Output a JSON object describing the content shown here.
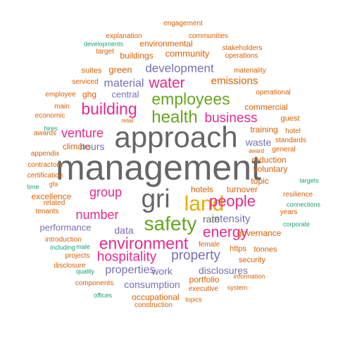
{
  "palette": {
    "gray": "#666666",
    "gold": "#e6ab02",
    "green": "#66a61e",
    "magenta": "#e7298a",
    "purple": "#7570b3",
    "orange": "#d95f02",
    "teal": "#1b9e77"
  },
  "words": [
    {
      "text": "management",
      "color": "gray"
    },
    {
      "text": "approach",
      "color": "gray"
    },
    {
      "text": "gri",
      "color": "gray"
    },
    {
      "text": "land",
      "color": "gold"
    },
    {
      "text": "safety",
      "color": "green"
    },
    {
      "text": "health",
      "color": "green"
    },
    {
      "text": "employees",
      "color": "green"
    },
    {
      "text": "building",
      "color": "magenta"
    },
    {
      "text": "environment",
      "color": "magenta"
    },
    {
      "text": "people",
      "color": "magenta"
    },
    {
      "text": "energy",
      "color": "magenta"
    },
    {
      "text": "water",
      "color": "magenta"
    },
    {
      "text": "business",
      "color": "magenta"
    },
    {
      "text": "hospitality",
      "color": "magenta"
    },
    {
      "text": "venture",
      "color": "magenta"
    },
    {
      "text": "group",
      "color": "magenta"
    },
    {
      "text": "number",
      "color": "magenta"
    },
    {
      "text": "property",
      "color": "purple"
    },
    {
      "text": "development",
      "color": "purple"
    },
    {
      "text": "material",
      "color": "purple"
    },
    {
      "text": "properties",
      "color": "purple"
    },
    {
      "text": "intensity",
      "color": "purple"
    },
    {
      "text": "performance",
      "color": "purple"
    },
    {
      "text": "consumption",
      "color": "purple"
    },
    {
      "text": "disclosures",
      "color": "purple"
    },
    {
      "text": "data",
      "color": "purple"
    },
    {
      "text": "hours",
      "color": "purple"
    },
    {
      "text": "work",
      "color": "purple"
    },
    {
      "text": "rate",
      "color": "gray"
    },
    {
      "text": "central",
      "color": "purple"
    },
    {
      "text": "waste",
      "color": "purple"
    },
    {
      "text": "emissions",
      "color": "orange"
    },
    {
      "text": "green",
      "color": "orange"
    },
    {
      "text": "climate",
      "color": "orange"
    },
    {
      "text": "training",
      "color": "orange"
    },
    {
      "text": "reduction",
      "color": "orange"
    },
    {
      "text": "voluntary",
      "color": "orange"
    },
    {
      "text": "hotels",
      "color": "orange"
    },
    {
      "text": "turnover",
      "color": "orange"
    },
    {
      "text": "topic",
      "color": "orange"
    },
    {
      "text": "excellence",
      "color": "orange"
    },
    {
      "text": "governance",
      "color": "orange"
    },
    {
      "text": "https",
      "color": "orange"
    },
    {
      "text": "tonnes",
      "color": "orange"
    },
    {
      "text": "commercial",
      "color": "orange"
    },
    {
      "text": "community",
      "color": "orange"
    },
    {
      "text": "environmental",
      "color": "orange"
    },
    {
      "text": "buildings",
      "color": "orange"
    },
    {
      "text": "ghg",
      "color": "orange"
    },
    {
      "text": "guest",
      "color": "orange"
    },
    {
      "text": "occupational",
      "color": "orange"
    },
    {
      "text": "portfolio",
      "color": "orange"
    },
    {
      "text": "security",
      "color": "orange"
    },
    {
      "text": "materiality",
      "color": "orange"
    },
    {
      "text": "operational",
      "color": "orange"
    },
    {
      "text": "resilience",
      "color": "orange"
    },
    {
      "text": "hotel",
      "color": "orange"
    },
    {
      "text": "general",
      "color": "orange"
    },
    {
      "text": "standards",
      "color": "orange"
    },
    {
      "text": "communities",
      "color": "orange"
    },
    {
      "text": "stakeholders",
      "color": "orange"
    },
    {
      "text": "operations",
      "color": "orange"
    },
    {
      "text": "engagement",
      "color": "orange"
    },
    {
      "text": "suites",
      "color": "orange"
    },
    {
      "text": "serviced",
      "color": "orange"
    },
    {
      "text": "main",
      "color": "orange"
    },
    {
      "text": "economic",
      "color": "orange"
    },
    {
      "text": "awards",
      "color": "orange"
    },
    {
      "text": "appendix",
      "color": "orange"
    },
    {
      "text": "contractors",
      "color": "orange"
    },
    {
      "text": "certification",
      "color": "orange"
    },
    {
      "text": "related",
      "color": "orange"
    },
    {
      "text": "tenants",
      "color": "orange"
    },
    {
      "text": "introduction",
      "color": "orange"
    },
    {
      "text": "projects",
      "color": "orange"
    },
    {
      "text": "disclosure",
      "color": "orange"
    },
    {
      "text": "components",
      "color": "orange"
    },
    {
      "text": "executive",
      "color": "orange"
    },
    {
      "text": "construction",
      "color": "orange"
    },
    {
      "text": "female",
      "color": "orange"
    },
    {
      "text": "years",
      "color": "orange"
    },
    {
      "text": "explanation",
      "color": "orange"
    },
    {
      "text": "target",
      "color": "orange"
    },
    {
      "text": "employee",
      "color": "orange"
    },
    {
      "text": "award",
      "color": "orange"
    },
    {
      "text": "gfa",
      "color": "orange"
    },
    {
      "text": "system",
      "color": "orange"
    },
    {
      "text": "topics",
      "color": "orange"
    },
    {
      "text": "information",
      "color": "orange"
    },
    {
      "text": "retail",
      "color": "orange"
    },
    {
      "text": "developments",
      "color": "teal"
    },
    {
      "text": "hires",
      "color": "teal"
    },
    {
      "text": "time",
      "color": "teal"
    },
    {
      "text": "targets",
      "color": "teal"
    },
    {
      "text": "connections",
      "color": "teal"
    },
    {
      "text": "corporate",
      "color": "teal"
    },
    {
      "text": "including",
      "color": "teal"
    },
    {
      "text": "male",
      "color": "teal"
    },
    {
      "text": "quality",
      "color": "teal"
    },
    {
      "text": "offices",
      "color": "teal"
    }
  ]
}
